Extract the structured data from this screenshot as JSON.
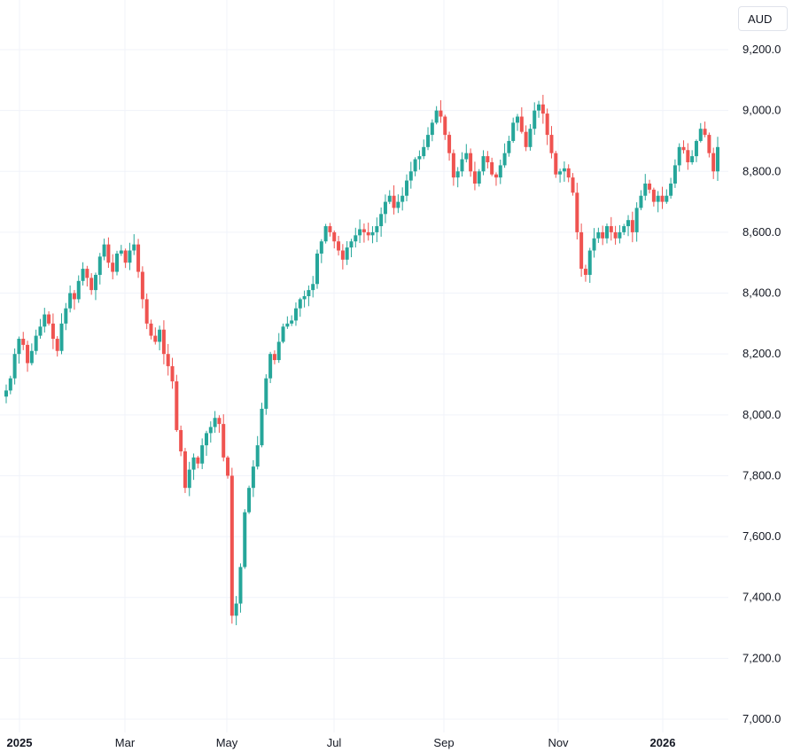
{
  "currency": "AUD",
  "chart_data": {
    "type": "candlestick",
    "x_axis": [
      "2025",
      "Mar",
      "May",
      "Jul",
      "Sep",
      "Nov",
      "2026"
    ],
    "x_axis_bold": [
      "2025",
      "2026"
    ],
    "ylim": [
      7000,
      9200
    ],
    "y_ticks": [
      7000,
      7200,
      7400,
      7600,
      7800,
      8000,
      8200,
      8400,
      8600,
      8800,
      9000,
      9200
    ],
    "y_tick_labels": [
      "7,000.0",
      "7,200.0",
      "7,400.0",
      "7,600.0",
      "7,800.0",
      "8,000.0",
      "8,200.0",
      "8,400.0",
      "8,600.0",
      "8,800.0",
      "9,000.0",
      "9,200.0"
    ],
    "up_color": "#26a69a",
    "down_color": "#ef5350",
    "grid": true,
    "closes": [
      8080,
      8120,
      8200,
      8250,
      8230,
      8170,
      8210,
      8260,
      8290,
      8330,
      8300,
      8250,
      8210,
      8300,
      8350,
      8400,
      8380,
      8440,
      8480,
      8450,
      8410,
      8460,
      8520,
      8560,
      8500,
      8470,
      8530,
      8540,
      8500,
      8540,
      8560,
      8470,
      8380,
      8300,
      8260,
      8240,
      8280,
      8200,
      8160,
      8110,
      7950,
      7880,
      7760,
      7820,
      7860,
      7840,
      7900,
      7940,
      7960,
      7990,
      7970,
      7860,
      7800,
      7340,
      7380,
      7500,
      7680,
      7760,
      7830,
      7900,
      8020,
      8120,
      8200,
      8180,
      8240,
      8290,
      8300,
      8310,
      8350,
      8380,
      8390,
      8410,
      8430,
      8530,
      8570,
      8620,
      8600,
      8570,
      8540,
      8510,
      8550,
      8570,
      8590,
      8610,
      8600,
      8590,
      8600,
      8620,
      8660,
      8700,
      8720,
      8680,
      8700,
      8720,
      8770,
      8800,
      8840,
      8850,
      8880,
      8920,
      8960,
      9000,
      8980,
      8920,
      8860,
      8780,
      8800,
      8840,
      8860,
      8800,
      8760,
      8800,
      8850,
      8830,
      8790,
      8780,
      8820,
      8860,
      8900,
      8960,
      8980,
      8930,
      8880,
      8940,
      9000,
      9020,
      8990,
      8920,
      8860,
      8790,
      8800,
      8810,
      8780,
      8730,
      8600,
      8480,
      8460,
      8540,
      8580,
      8600,
      8580,
      8620,
      8600,
      8580,
      8600,
      8620,
      8640,
      8600,
      8680,
      8720,
      8760,
      8740,
      8700,
      8720,
      8700,
      8720,
      8760,
      8820,
      8880,
      8870,
      8830,
      8850,
      8900,
      8940,
      8920,
      8860,
      8800,
      8880
    ]
  }
}
